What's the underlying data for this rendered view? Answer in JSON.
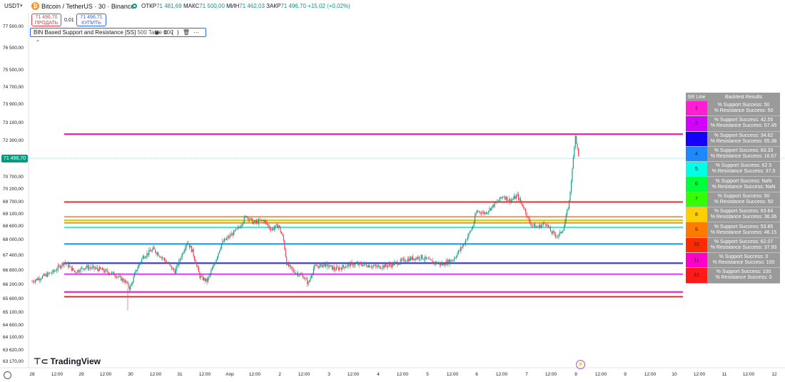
{
  "header": {
    "currency": "USDT",
    "symbol": "Bitcoin / TetherUS · 30 · Binance",
    "ohlc": [
      {
        "k": "ОТКР",
        "v": "71 481,69"
      },
      {
        "k": "МАКС",
        "v": "71 500,00"
      },
      {
        "k": "МИН",
        "v": "71 462,03"
      },
      {
        "k": "ЗАКР",
        "v": "71 496,70"
      },
      {
        "k": "",
        "v": "+15,02 (+0,02%)"
      }
    ],
    "sell_price": "71 496,70",
    "sell_label": "ПРОДАТЬ",
    "spread": "0,01",
    "buy_price": "71 496,71",
    "buy_label": "КУПИТЬ",
    "indicator_name": "BIN Based Support and Resistance [SS]",
    "indicator_args": "500 Table 100",
    "logo_text": "TradingView",
    "current_price_tag": "71 496,70"
  },
  "colors": {
    "up": "#089981",
    "down": "#f23645",
    "current_price": "#089981"
  },
  "chart_data": {
    "type": "candlestick",
    "y_ticks": [
      "77 500,00",
      "76 500,00",
      "75 500,00",
      "74 700,00",
      "73 900,00",
      "73 100,00",
      "72 300,00",
      "71 500,00",
      "70 700,00",
      "70 200,00",
      "69 700,00",
      "69 100,00",
      "68 600,00",
      "68 000,00",
      "67 400,00",
      "66 800,00",
      "66 200,00",
      "65 600,00",
      "65 100,00",
      "64 600,00",
      "64 100,00",
      "63 620,00",
      "63 170,00"
    ],
    "x_ticks": [
      "28",
      "12:00",
      "29",
      "12:00",
      "30",
      "12:00",
      "31",
      "12:00",
      "Апр",
      "12:00",
      "2",
      "12:00",
      "3",
      "12:00",
      "4",
      "12:00",
      "5",
      "12:00",
      "6",
      "12:00",
      "7",
      "12:00",
      "8",
      "12:00",
      "9",
      "12:00",
      "10",
      "12:00",
      "11",
      "12:00",
      "12"
    ],
    "sr_levels": [
      {
        "label": "1",
        "price": 72550,
        "color": "#e91e9f"
      },
      {
        "label": "2",
        "price": 69650,
        "color": "#e53935"
      },
      {
        "label": "3",
        "price": 68950,
        "color": "#f4a261"
      },
      {
        "label": "4",
        "price": 68800,
        "color": "#c9c922"
      },
      {
        "label": "5",
        "price": 68700,
        "color": "#e8a317"
      },
      {
        "label": "6",
        "price": 68500,
        "color": "#3ee6d0"
      },
      {
        "label": "7",
        "price": 67800,
        "color": "#2196f3"
      },
      {
        "label": "8",
        "price": 67050,
        "color": "#3f3fc8"
      },
      {
        "label": "9",
        "price": 66600,
        "color": "#e040fb"
      },
      {
        "label": "10",
        "price": 65850,
        "color": "#e91ec0"
      },
      {
        "label": "11",
        "price": 65650,
        "color": "#e53935"
      }
    ]
  },
  "table": {
    "headers": [
      "SR Line",
      "Backtest Results"
    ],
    "rows": [
      {
        "n": "1",
        "c": "#ff1ed2",
        "s": "% Support Success: 50",
        "r": "% Resistance Success: 50"
      },
      {
        "n": "2",
        "c": "#d400ff",
        "s": "% Support Success: 42.55",
        "r": "% Resistance Success: 57.45"
      },
      {
        "n": "3",
        "c": "#1500ff",
        "s": "% Support Success: 34.62",
        "r": "% Resistance Success: 65.38"
      },
      {
        "n": "4",
        "c": "#1e88ff",
        "s": "% Support Success: 83.33",
        "r": "% Resistance Success: 16.67"
      },
      {
        "n": "5",
        "c": "#00ffe6",
        "s": "% Support Success: 62.5",
        "r": "% Resistance Success: 37.5"
      },
      {
        "n": "6",
        "c": "#00ff3a",
        "s": "% Support Success: NaN",
        "r": "% Resistance Success: NaN"
      },
      {
        "n": "7",
        "c": "#33ff00",
        "s": "% Support Success: 50",
        "r": "% Resistance Success: 50"
      },
      {
        "n": "8",
        "c": "#ffd000",
        "s": "% Support Success: 63.64",
        "r": "% Resistance Success: 36.36"
      },
      {
        "n": "9",
        "c": "#ff7a00",
        "s": "% Support Success: 53.85",
        "r": "% Resistance Success: 46.15"
      },
      {
        "n": "10",
        "c": "#ff2a00",
        "s": "% Support Success: 62.07",
        "r": "% Resistance Success: 37.93"
      },
      {
        "n": "11",
        "c": "#ff00c8",
        "s": "% Support Success: 0",
        "r": "% Resistance Success: 100"
      },
      {
        "n": "12",
        "c": "#ff1a1a",
        "s": "% Support Success: 100",
        "r": "% Resistance Success: 0"
      }
    ]
  }
}
